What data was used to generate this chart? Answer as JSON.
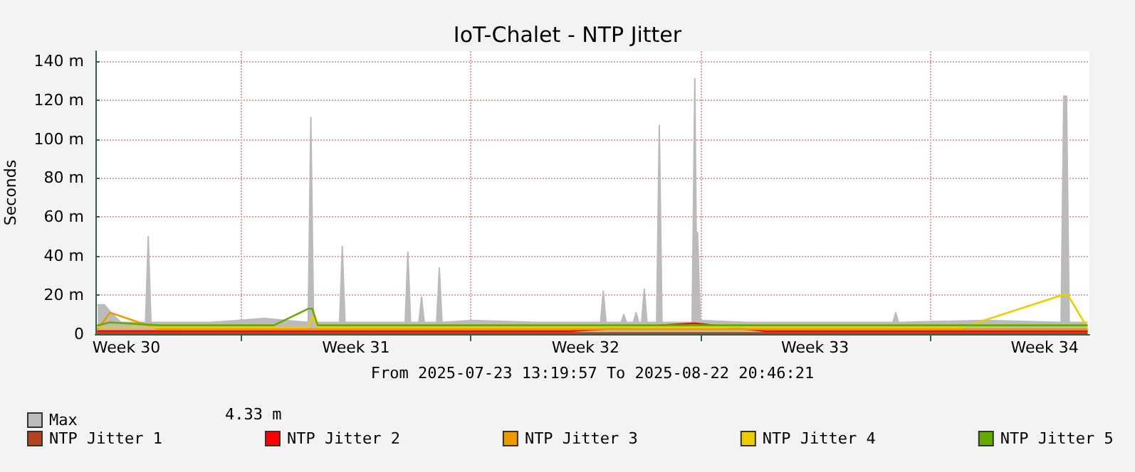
{
  "chart_data": {
    "type": "line",
    "title": "IoT-Chalet - NTP Jitter",
    "ylabel": "Seconds",
    "xlabel": "From 2025-07-23 13:19:57 To 2025-08-22 20:46:21",
    "annotations": [
      "4.33 m"
    ],
    "xlim": [
      "2025-07-23T13:20",
      "2025-08-22T20:46"
    ],
    "xticks": [
      {
        "value": "2025-07-24T12:00",
        "label": "Week 30"
      },
      {
        "value": "2025-07-31T12:00",
        "label": "Week 31"
      },
      {
        "value": "2025-08-07T12:00",
        "label": "Week 32"
      },
      {
        "value": "2025-08-14T12:00",
        "label": "Week 33"
      },
      {
        "value": "2025-08-21T12:00",
        "label": "Week 34"
      },
      {
        "value": "2025-07-28T00:00",
        "label": null
      },
      {
        "value": "2025-08-04T00:00",
        "label": null
      },
      {
        "value": "2025-08-11T00:00",
        "label": null
      },
      {
        "value": "2025-08-18T00:00",
        "label": null
      }
    ],
    "ylim": [
      0,
      145
    ],
    "yticks": [
      0,
      {
        "value": 20,
        "label": "20 m"
      },
      {
        "value": 40,
        "label": "40 m"
      },
      {
        "value": 60,
        "label": "60 m"
      },
      {
        "value": 80,
        "label": "80 m"
      },
      {
        "value": 100,
        "label": "100 m"
      },
      {
        "value": 120,
        "label": "120 m"
      },
      {
        "value": 140,
        "label": "140 m"
      }
    ],
    "grid": true,
    "legend": "bottom left",
    "marker": "none",
    "line_style": "solid",
    "x": [
      "2025-07-23T15:00",
      "2025-07-24T00:00",
      "2025-07-25T12:00",
      "2025-07-27T00:00",
      "2025-07-29T00:00",
      "2025-07-30T01:00",
      "2025-07-30T04:00",
      "2025-07-30T08:00",
      "2025-08-01T00:00",
      "2025-08-04T00:00",
      "2025-08-07T00:00",
      "2025-08-10T20:00",
      "2025-08-13T00:00",
      "2025-08-16T00:00",
      "2025-08-19T00:00",
      "2025-08-22T01:00",
      "2025-08-22T05:00",
      "2025-08-22T19:00"
    ],
    "series": [
      {
        "name": "Max",
        "type": "area",
        "color": "#bbbbbb",
        "x": [
          "2025-07-23T15:00",
          "2025-07-23T20:00",
          "2025-07-24T02:00",
          "2025-07-24T08:00",
          "2025-07-25T02:00",
          "2025-07-25T04:00",
          "2025-07-25T06:00",
          "2025-07-27T02:00",
          "2025-07-28T17:00",
          "2025-07-30T01:00",
          "2025-07-30T03:00",
          "2025-07-30T05:00",
          "2025-07-31T00:00",
          "2025-07-31T02:00",
          "2025-07-31T04:00",
          "2025-08-02T00:00",
          "2025-08-02T02:00",
          "2025-08-02T04:00",
          "2025-08-02T10:00",
          "2025-08-02T12:00",
          "2025-08-02T14:00",
          "2025-08-02T23:00",
          "2025-08-03T01:00",
          "2025-08-03T03:00",
          "2025-08-04T01:00",
          "2025-08-06T00:00",
          "2025-08-07T23:00",
          "2025-08-08T01:00",
          "2025-08-08T03:00",
          "2025-08-08T14:00",
          "2025-08-08T16:00",
          "2025-08-08T18:00",
          "2025-08-08T23:00",
          "2025-08-09T01:00",
          "2025-08-09T03:00",
          "2025-08-09T05:00",
          "2025-08-09T07:00",
          "2025-08-09T09:00",
          "2025-08-09T16:00",
          "2025-08-09T18:00",
          "2025-08-09T20:00",
          "2025-08-10T18:00",
          "2025-08-10T20:00",
          "2025-08-10T21:00",
          "2025-08-10T22:00",
          "2025-08-11T00:00",
          "2025-08-12T10:00",
          "2025-08-15T00:00",
          "2025-08-16T21:00",
          "2025-08-16T23:00",
          "2025-08-17T01:00",
          "2025-08-19T17:00",
          "2025-08-22T00:00",
          "2025-08-22T02:00",
          "2025-08-22T04:00",
          "2025-08-22T06:00",
          "2025-08-22T19:00"
        ],
        "values": [
          15,
          15,
          10,
          6,
          6,
          50,
          6,
          6,
          8,
          6,
          111,
          6,
          6,
          45,
          6,
          6,
          42,
          6,
          6,
          19,
          6,
          6,
          34,
          6,
          7,
          6,
          6,
          22,
          6,
          6,
          10,
          6,
          6,
          11,
          6,
          6,
          23,
          6,
          6,
          107,
          6,
          6,
          131,
          52,
          52,
          7,
          6,
          6,
          6,
          11,
          6,
          7,
          6,
          122,
          122,
          6,
          6
        ]
      },
      {
        "name": "NTP Jitter 1",
        "color": "#b5421f",
        "values": [
          0.5,
          0.5,
          0.5,
          0.5,
          0.5,
          0.5,
          0.5,
          0.5,
          0.5,
          0.5,
          0.5,
          0.5,
          0.5,
          0.5,
          0.5,
          0.5,
          0.5,
          0.5
        ]
      },
      {
        "name": "NTP Jitter 2",
        "color": "#ff0000",
        "values": [
          1.5,
          1.5,
          1.5,
          1.5,
          1.5,
          1.5,
          1.5,
          1.5,
          1.5,
          1.5,
          1.5,
          5.5,
          1.5,
          1.5,
          1.5,
          1.5,
          1.5,
          1.5
        ]
      },
      {
        "name": "NTP Jitter 3",
        "color": "#ee9900",
        "values": [
          2.5,
          11,
          2.5,
          2.5,
          2.5,
          2.5,
          2.5,
          2.5,
          2.5,
          2.5,
          2.5,
          2.5,
          2.5,
          2.5,
          2.5,
          2.5,
          2.5,
          2.5
        ]
      },
      {
        "name": "NTP Jitter 4",
        "color": "#eecc00",
        "values": [
          3.5,
          3.5,
          3.5,
          3.5,
          3.5,
          3.5,
          9,
          3.5,
          3.5,
          3.5,
          3.5,
          3.5,
          3.5,
          3.5,
          3.5,
          20,
          20,
          3.5
        ]
      },
      {
        "name": "NTP Jitter 5",
        "color": "#66aa00",
        "values": [
          4.5,
          6,
          4.5,
          4.5,
          4.5,
          13,
          13,
          4.5,
          4.5,
          4.5,
          4.5,
          4.5,
          4.5,
          4.5,
          4.5,
          4.5,
          4.5,
          4.5
        ]
      }
    ]
  }
}
